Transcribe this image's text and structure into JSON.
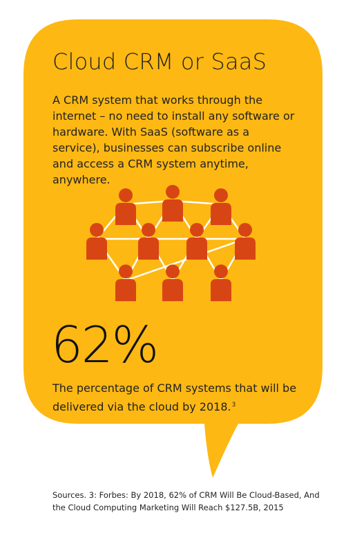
{
  "colors": {
    "bubble": "#FDB813",
    "person": "#D84514",
    "connector": "#FFFFFF",
    "text": "#222222"
  },
  "title": "Cloud CRM or SaaS",
  "description": "A CRM system that works through the internet – no need to install any software or hardware. With SaaS (software as a service), businesses can subscribe online and access a CRM system anytime, anywhere.",
  "stat": {
    "value": "62%",
    "caption": "The percentage of CRM systems that will be delivered via the cloud by 2018.",
    "footnote_ref": "3"
  },
  "sources": "Sources.  3:  Forbes: By 2018, 62% of CRM Will Be Cloud-Based, And the Cloud Computing Marketing Will Reach $127.5B, 2015",
  "icons": {
    "network": "people-network-icon",
    "person": "person-icon"
  }
}
